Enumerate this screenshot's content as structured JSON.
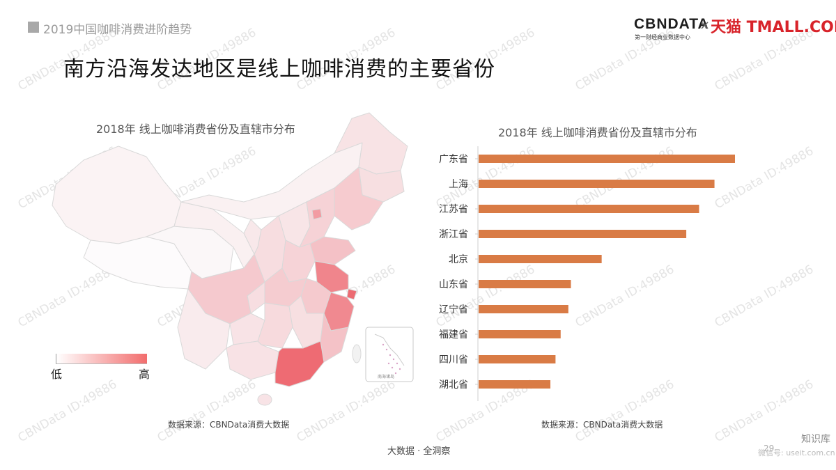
{
  "header": {
    "section_title": "2019中国咖啡消费进阶趋势",
    "logo_cbn": "CBNDATA",
    "logo_cbn_sub": "第一财经商业数据中心",
    "logo_x": "×",
    "logo_tmall": "天猫 TMALL.COM",
    "watermark": "CBNData ID:49886"
  },
  "main_title": "南方沿海发达地区是线上咖啡消费的主要省份",
  "map": {
    "title": "2018年 线上咖啡消费省份及直辖市分布",
    "legend_low": "低",
    "legend_high": "高",
    "source": "数据来源：CBNData消费大数据",
    "inset_label": "南海诸岛",
    "colors": {
      "low": "#ffffff",
      "high": "#f26d6d"
    }
  },
  "bar_chart": {
    "title": "2018年 线上咖啡消费省份及直辖市分布",
    "source": "数据来源：CBNData消费大数据"
  },
  "chart_data": [
    {
      "type": "bar",
      "orientation": "horizontal",
      "title": "2018年 线上咖啡消费省份及直辖市分布",
      "categories": [
        "广东省",
        "上海",
        "江苏省",
        "浙江省",
        "北京",
        "山东省",
        "辽宁省",
        "福建省",
        "四川省",
        "湖北省"
      ],
      "values": [
        100,
        92,
        86,
        81,
        48,
        36,
        35,
        32,
        30,
        28
      ],
      "xlim": [
        0,
        100
      ],
      "bar_color": "#d97b45",
      "grid": false,
      "legend": "none"
    }
  ],
  "footer": {
    "tagline": "大数据 · 全洞察",
    "page_number": "29",
    "brand": "知识库",
    "brand_sub": "微信号: useit.com.cn"
  }
}
